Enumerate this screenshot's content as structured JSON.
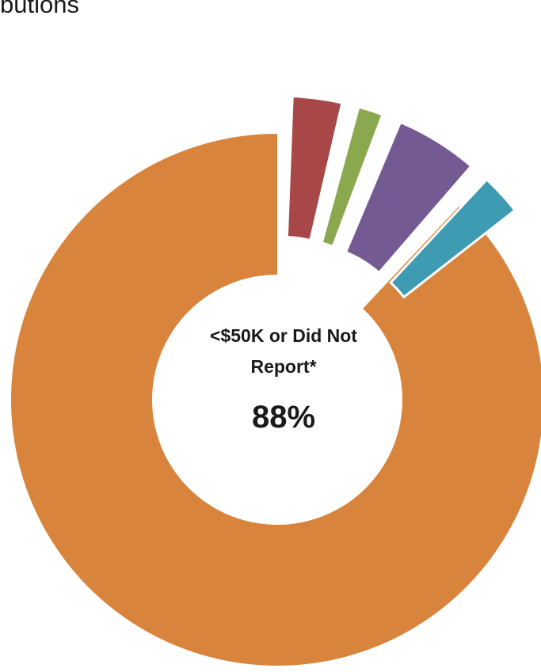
{
  "title": "butions",
  "colors": {
    "orange": "#d9843d",
    "red": "#a84747",
    "green": "#8aa84d",
    "purple": "#745a93",
    "teal": "#3f9bb1"
  },
  "chart_data": {
    "type": "pie",
    "variant": "exploded-donut",
    "title": "butions",
    "slices": [
      {
        "label": "<$50K or Did Not Report*",
        "value": 88,
        "display": "88%",
        "color": "#d9843d"
      },
      {
        "label": "",
        "value": 3,
        "color": "#a84747"
      },
      {
        "label": "",
        "value": 1.5,
        "color": "#8aa84d"
      },
      {
        "label": "",
        "value": 5,
        "color": "#745a93"
      },
      {
        "label": "",
        "value": 2.5,
        "color": "#3f9bb1"
      }
    ],
    "center_label": {
      "text": "<$50K or Did Not Report*",
      "value": "88%"
    },
    "legend": "none"
  }
}
